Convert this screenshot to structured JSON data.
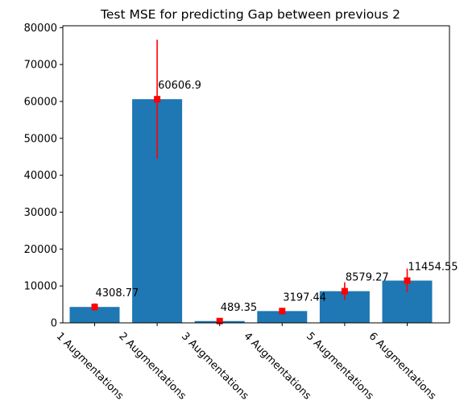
{
  "chart_data": {
    "type": "bar",
    "title": "Test MSE for predicting Gap between previous 2",
    "xlabel": "",
    "ylabel": "",
    "categories": [
      "1 Augmentations",
      "2 Augmentations",
      "3 Augmentations",
      "4 Augmentations",
      "5 Augmentations",
      "6 Augmentations"
    ],
    "values": [
      4308.77,
      60606.9,
      489.35,
      3197.44,
      8579.27,
      11454.55
    ],
    "value_labels": [
      "4308.77",
      "60606.9",
      "489.35",
      "3197.44",
      "8579.27",
      "11454.55"
    ],
    "error_low": [
      3300,
      44500,
      200,
      2300,
      6200,
      8300
    ],
    "error_high": [
      5300,
      76700,
      800,
      4100,
      11000,
      14700
    ],
    "ylim": [
      0,
      80500
    ],
    "yticks": [
      0,
      10000,
      20000,
      30000,
      40000,
      50000,
      60000,
      70000,
      80000
    ],
    "ytick_labels": [
      "0",
      "10000",
      "20000",
      "30000",
      "40000",
      "50000",
      "60000",
      "70000",
      "80000"
    ],
    "grid": false,
    "bar_color": "#1f77b4",
    "marker_color": "#ff0000",
    "error_color": "#ff0000"
  }
}
